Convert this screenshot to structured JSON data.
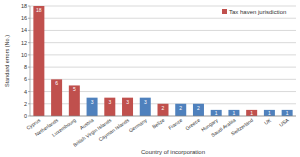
{
  "chart_data": {
    "type": "bar",
    "x_label": "Country of incorporation",
    "y_label": "Standard errors (No.)",
    "categories": [
      "Cyprus",
      "Netherlands",
      "Luxembourg",
      "Austria",
      "British Virgin Islands",
      "Cayman Islands",
      "Germany",
      "Belize",
      "France",
      "Greece",
      "Hungary",
      "Saudi Arabia",
      "Switzerland",
      "UK",
      "USA"
    ],
    "series": [
      {
        "name": "Tax haven jurisdiction",
        "color": "#c0504d",
        "values": [
          18,
          6,
          5,
          3,
          3,
          3,
          3,
          2,
          2,
          2,
          1,
          1,
          1,
          1,
          1
        ],
        "colors": [
          "#c0504d",
          "#c0504d",
          "#c0504d",
          "#4f81bd",
          "#c0504d",
          "#c0504d",
          "#4f81bd",
          "#c0504d",
          "#4f81bd",
          "#4f81bd",
          "#4f81bd",
          "#4f81bd",
          "#c0504d",
          "#4f81bd",
          "#4f81bd"
        ]
      }
    ],
    "ylim": [
      0,
      18
    ],
    "yticks": [
      0,
      2,
      4,
      6,
      8,
      10,
      12,
      14,
      16,
      18
    ],
    "grid": true,
    "legend": "top-right",
    "data_labels": true
  }
}
